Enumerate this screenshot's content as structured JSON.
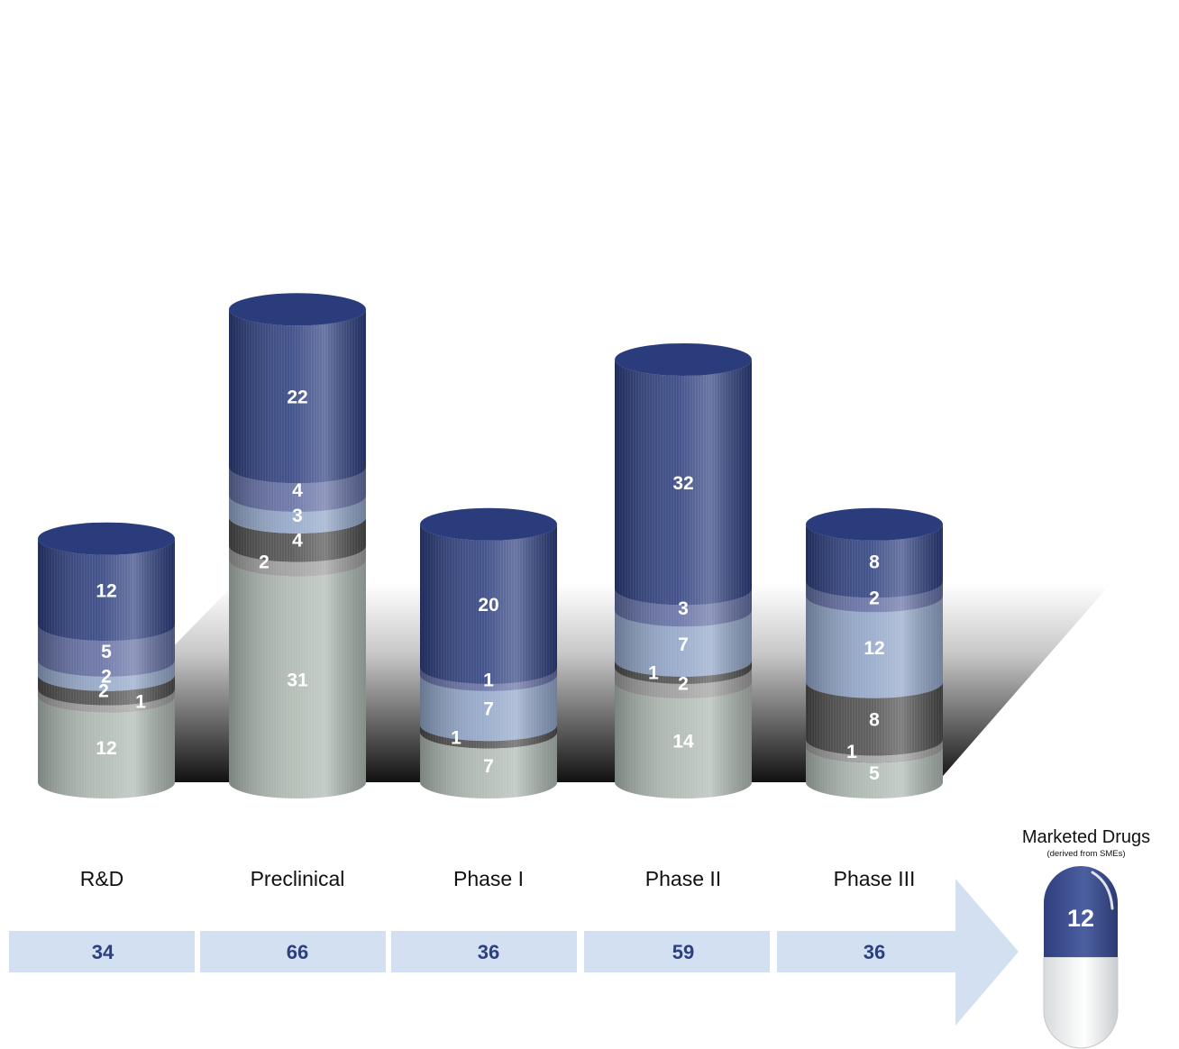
{
  "chart_data": {
    "type": "bar",
    "title": "",
    "xlabel": "",
    "ylabel": "",
    "categories": [
      "R&D",
      "Preclinical",
      "Phase I",
      "Phase II",
      "Phase III"
    ],
    "series": [
      {
        "color": "#aab6ae",
        "values": [
          12,
          31,
          7,
          14,
          5
        ]
      },
      {
        "color": "#9a9a9a",
        "values": [
          1,
          2,
          0,
          2,
          1
        ]
      },
      {
        "color": "#4a4a4a",
        "values": [
          2,
          4,
          1,
          1,
          8
        ]
      },
      {
        "color": "#8ea3c6",
        "values": [
          2,
          3,
          7,
          7,
          12
        ]
      },
      {
        "color": "#5f6aa0",
        "values": [
          5,
          4,
          1,
          3,
          2
        ]
      },
      {
        "color": "#2a3c7c",
        "values": [
          12,
          22,
          20,
          32,
          8
        ]
      }
    ],
    "totals": [
      34,
      66,
      36,
      59,
      36
    ],
    "marketed_drugs": {
      "title": "Marketed Drugs",
      "subtitle": "(derived from SMEs)",
      "value": 12
    },
    "legend": "none",
    "grid": false
  }
}
